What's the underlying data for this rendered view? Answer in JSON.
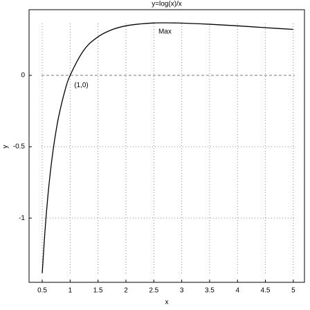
{
  "chart_data": {
    "type": "line",
    "title": "y=log(x)/x",
    "x_label": "x",
    "y_label": "y",
    "x": [
      0.5,
      0.55,
      0.6,
      0.65,
      0.7,
      0.75,
      0.8,
      0.9,
      1,
      1.25,
      1.5,
      1.75,
      2,
      2.25,
      2.5,
      2.718,
      3,
      3.5,
      4,
      4.5,
      5
    ],
    "series": [
      {
        "name": "y",
        "color": "#000000",
        "values": [
          -1.386,
          -1.087,
          -0.851,
          -0.663,
          -0.51,
          -0.384,
          -0.279,
          -0.117,
          0,
          0.179,
          0.27,
          0.32,
          0.347,
          0.36,
          0.367,
          0.368,
          0.366,
          0.358,
          0.347,
          0.334,
          0.322
        ]
      }
    ],
    "xlim": [
      0.264,
      5.2
    ],
    "ylim": [
      -1.45,
      0.46
    ],
    "xticks": [
      0.5,
      1,
      1.5,
      2,
      2.5,
      3,
      3.5,
      4,
      4.5,
      5
    ],
    "yticks": [
      -1,
      -0.5,
      0
    ],
    "grid": true,
    "axhline": 0,
    "annotations": [
      {
        "text": "Max",
        "x": 2.7,
        "y": 0.306
      },
      {
        "text": "(1,0)",
        "x": 1.2,
        "y": -0.07
      }
    ]
  }
}
